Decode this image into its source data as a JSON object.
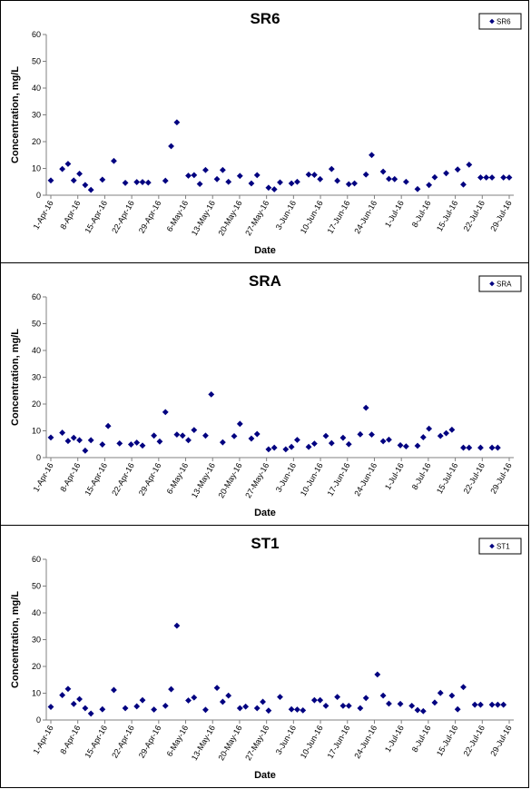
{
  "chart_data": [
    {
      "type": "scatter",
      "title": "SR6",
      "xlabel": "Date",
      "ylabel": "Concentration, mg/L",
      "legend": "top-right",
      "legend_entry": "SR6",
      "marker_color": "#000080",
      "ylim": [
        0,
        60
      ],
      "yticks": [
        0,
        10,
        20,
        30,
        40,
        50,
        60
      ],
      "grid": false,
      "xticks": [
        "1-Apr-16",
        "8-Apr-16",
        "15-Apr-16",
        "22-Apr-16",
        "29-Apr-16",
        "6-May-16",
        "13-May-16",
        "20-May-16",
        "27-May-16",
        "3-Jun-16",
        "10-Jun-16",
        "17-Jun-16",
        "24-Jun-16",
        "1-Jul-16",
        "8-Jul-16",
        "15-Jul-16",
        "22-Jul-16",
        "29-Jul-16"
      ],
      "x": [
        0,
        2,
        3,
        4,
        5,
        6,
        7,
        9,
        11,
        13,
        15,
        16,
        17,
        20,
        21,
        22,
        24,
        25,
        26,
        27,
        29,
        30,
        31,
        33,
        35,
        36,
        38,
        39,
        40,
        42,
        43,
        45,
        46,
        47,
        49,
        50,
        52,
        53,
        55,
        56,
        58,
        59,
        60,
        62,
        64,
        66,
        67,
        69,
        71,
        72,
        73,
        75,
        76,
        77,
        79,
        80
      ],
      "values": [
        5.5,
        9.8,
        11.7,
        5.5,
        8.0,
        3.8,
        2.0,
        5.8,
        12.8,
        4.6,
        4.9,
        4.9,
        4.7,
        5.4,
        18.3,
        27.2,
        7.3,
        7.5,
        4.2,
        9.4,
        6.0,
        9.4,
        5.0,
        7.2,
        4.4,
        7.5,
        2.8,
        2.2,
        4.8,
        4.4,
        5.0,
        7.7,
        7.6,
        6.0,
        9.8,
        5.4,
        4.1,
        4.4,
        7.7,
        15.0,
        8.8,
        6.1,
        6.0,
        5.0,
        2.3,
        3.8,
        6.7,
        8.2,
        9.6,
        4.0,
        11.4,
        6.6,
        6.6,
        6.6,
        6.6,
        6.6
      ]
    },
    {
      "type": "scatter",
      "title": "SRA",
      "xlabel": "Date",
      "ylabel": "Concentration, mg/L",
      "legend": "top-right",
      "legend_entry": "SRA",
      "marker_color": "#000080",
      "ylim": [
        0,
        60
      ],
      "yticks": [
        0,
        10,
        20,
        30,
        40,
        50,
        60
      ],
      "grid": false,
      "xticks": [
        "1-Apr-16",
        "8-Apr-16",
        "15-Apr-16",
        "22-Apr-16",
        "29-Apr-16",
        "6-May-16",
        "13-May-16",
        "20-May-16",
        "27-May-16",
        "3-Jun-16",
        "10-Jun-16",
        "17-Jun-16",
        "24-Jun-16",
        "1-Jul-16",
        "8-Jul-16",
        "15-Jul-16",
        "22-Jul-16",
        "29-Jul-16"
      ],
      "x": [
        0,
        2,
        3,
        4,
        5,
        6,
        7,
        9,
        10,
        12,
        14,
        15,
        16,
        18,
        19,
        20,
        22,
        23,
        24,
        25,
        27,
        28,
        30,
        32,
        33,
        35,
        36,
        38,
        39,
        41,
        42,
        43,
        45,
        46,
        48,
        49,
        51,
        52,
        54,
        55,
        56,
        58,
        59,
        61,
        62,
        64,
        65,
        66,
        68,
        69,
        70,
        72,
        73,
        75,
        77,
        78
      ],
      "values": [
        7.5,
        9.3,
        6.2,
        7.4,
        6.5,
        2.6,
        6.5,
        4.9,
        11.8,
        5.3,
        4.9,
        5.6,
        4.5,
        8.2,
        6.0,
        17.0,
        8.6,
        8.2,
        6.5,
        10.3,
        8.2,
        23.6,
        5.7,
        8.0,
        12.6,
        7.1,
        8.8,
        3.1,
        3.7,
        3.1,
        4.0,
        6.6,
        4.0,
        5.2,
        8.1,
        5.4,
        7.4,
        5.0,
        8.7,
        18.6,
        8.6,
        6.1,
        6.7,
        4.6,
        4.2,
        4.4,
        7.6,
        10.8,
        8.1,
        9.1,
        10.4,
        3.7,
        3.7,
        3.7,
        3.7,
        3.7
      ]
    },
    {
      "type": "scatter",
      "title": "ST1",
      "xlabel": "Date",
      "ylabel": "Concentration, mg/L",
      "legend": "top-right",
      "legend_entry": "ST1",
      "marker_color": "#000080",
      "ylim": [
        0,
        60
      ],
      "yticks": [
        0,
        10,
        20,
        30,
        40,
        50,
        60
      ],
      "grid": false,
      "xticks": [
        "1-Apr-16",
        "8-Apr-16",
        "15-Apr-16",
        "22-Apr-16",
        "29-Apr-16",
        "6-May-16",
        "13-May-16",
        "20-May-16",
        "27-May-16",
        "3-Jun-16",
        "10-Jun-16",
        "17-Jun-16",
        "24-Jun-16",
        "1-Jul-16",
        "8-Jul-16",
        "15-Jul-16",
        "22-Jul-16",
        "29-Jul-16"
      ],
      "x": [
        0,
        2,
        3,
        4,
        5,
        6,
        7,
        9,
        11,
        13,
        15,
        16,
        18,
        20,
        21,
        22,
        24,
        25,
        27,
        29,
        30,
        31,
        33,
        34,
        36,
        37,
        38,
        40,
        42,
        43,
        44,
        46,
        47,
        48,
        50,
        51,
        52,
        54,
        55,
        57,
        58,
        59,
        61,
        63,
        64,
        65,
        67,
        68,
        70,
        71,
        72,
        74,
        75,
        77,
        78,
        79
      ],
      "values": [
        4.9,
        9.3,
        11.6,
        6.0,
        7.8,
        4.4,
        2.4,
        4.0,
        11.2,
        4.4,
        5.1,
        7.4,
        3.9,
        5.3,
        11.5,
        35.2,
        7.3,
        8.4,
        3.8,
        12.0,
        6.8,
        9.1,
        4.4,
        5.0,
        4.4,
        6.8,
        3.5,
        8.6,
        4.0,
        3.9,
        3.6,
        7.4,
        7.4,
        5.3,
        8.6,
        5.3,
        5.3,
        4.4,
        8.2,
        17.0,
        9.1,
        6.1,
        6.0,
        5.3,
        3.7,
        3.3,
        6.5,
        10.1,
        9.1,
        4.0,
        12.3,
        5.7,
        5.7,
        5.7,
        5.7,
        5.7
      ]
    }
  ]
}
